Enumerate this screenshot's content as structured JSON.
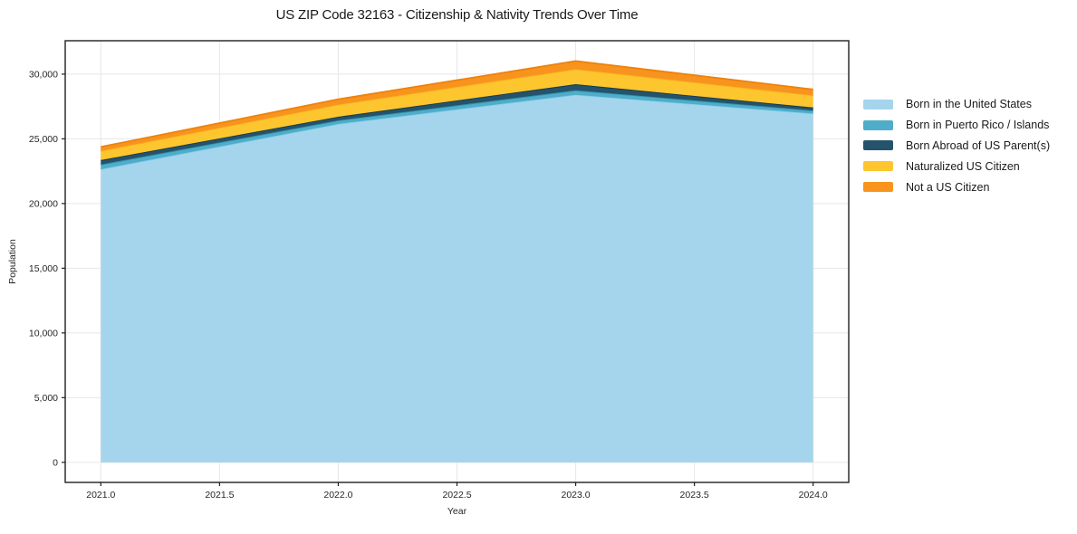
{
  "figure": {
    "title": "US ZIP Code 32163 - Citizenship & Nativity Trends Over Time"
  },
  "chart_data": {
    "type": "area",
    "stacked": true,
    "title": "US ZIP Code 32163 - Citizenship & Nativity Trends Over Time",
    "xlabel": "Year",
    "ylabel": "Population",
    "x": [
      2021,
      2022,
      2023,
      2024
    ],
    "series": [
      {
        "name": "Born in the United States",
        "values": [
          22650,
          26150,
          28400,
          26950
        ],
        "fill": "#a5d5ec",
        "line": "#87ceeb"
      },
      {
        "name": "Born in Puerto Rico / Islands",
        "values": [
          370,
          280,
          350,
          240
        ],
        "fill": "#4fadc9",
        "line": "#2d91ac"
      },
      {
        "name": "Born Abroad of US Parent(s)",
        "values": [
          340,
          280,
          470,
          230
        ],
        "fill": "#25536b",
        "line": "#16394e"
      },
      {
        "name": "Naturalized US Citizen",
        "values": [
          700,
          930,
          1160,
          930
        ],
        "fill": "#fdc62f",
        "line": "#fcb424"
      },
      {
        "name": "Not a US Citizen",
        "values": [
          320,
          420,
          630,
          470
        ],
        "fill": "#f8941d",
        "line": "#ee820c"
      }
    ],
    "totals": [
      24380,
      28060,
      31010,
      28820
    ],
    "xlim": [
      2020.85,
      2024.15
    ],
    "ylim": [
      -1551,
      32581
    ],
    "x_ticks": {
      "values": [
        2021.0,
        2021.5,
        2022.0,
        2022.5,
        2023.0,
        2023.5,
        2024.0
      ],
      "labels": [
        "2021.0",
        "2021.5",
        "2022.0",
        "2022.5",
        "2023.0",
        "2023.5",
        "2024.0"
      ]
    },
    "y_ticks": {
      "values": [
        0,
        5000,
        10000,
        15000,
        20000,
        25000,
        30000
      ],
      "labels": [
        "0",
        "5,000",
        "10,000",
        "15,000",
        "20,000",
        "25,000",
        "30,000"
      ]
    },
    "grid": true,
    "legend_position": "right-outside"
  },
  "colors": {
    "background": "#ffffff",
    "grid": "#e7e7e7",
    "spine": "#1f1f1f",
    "tick": "#1f1f1f",
    "tick_label": "#262626"
  }
}
